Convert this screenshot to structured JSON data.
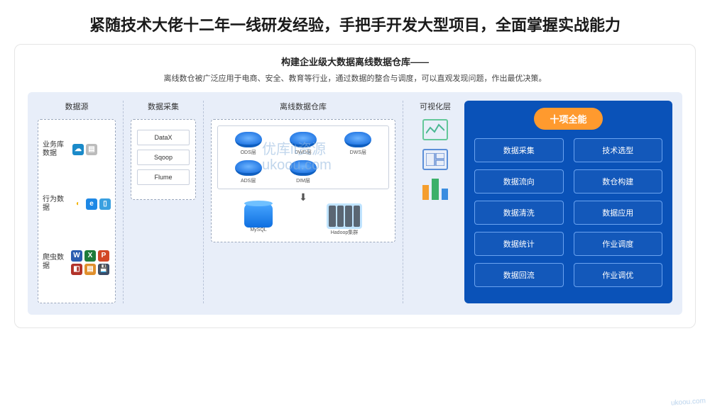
{
  "page_title": "紧随技术大佬十二年一线研发经验，手把手开发大型项目，全面掌握实战能力",
  "card": {
    "title": "构建企业级大数据离线数据仓库——",
    "subtitle": "离线数仓被广泛应用于电商、安全、教育等行业，通过数据的整合与调度，可以直观发现问题，作出最优决策。"
  },
  "columns": {
    "source": {
      "header": "数据源",
      "rows": [
        {
          "label": "业务库数据",
          "icons": [
            {
              "bg": "#1a8ac9",
              "glyph": "☁"
            },
            {
              "bg": "#bcbcbc",
              "glyph": "▤"
            }
          ]
        },
        {
          "label": "行为数据",
          "icons": [
            {
              "bg": "#ffffff",
              "glyph": "◐",
              "fg": "#f4b400"
            },
            {
              "bg": "#1e88e5",
              "glyph": "e"
            },
            {
              "bg": "#3aa0e0",
              "glyph": "▯"
            }
          ]
        },
        {
          "label": "爬虫数据",
          "icons": [
            {
              "bg": "#2a5db0",
              "glyph": "W"
            },
            {
              "bg": "#1f7b3a",
              "glyph": "X"
            },
            {
              "bg": "#d24726",
              "glyph": "P"
            },
            {
              "bg": "#b2332a",
              "glyph": "◧"
            },
            {
              "bg": "#e08f2c",
              "glyph": "▤"
            },
            {
              "bg": "#3b4b66",
              "glyph": "💾",
              "fg": "#fff"
            }
          ]
        }
      ]
    },
    "collect": {
      "header": "数据采集",
      "tools": [
        "DataX",
        "Sqoop",
        "Flume"
      ]
    },
    "warehouse": {
      "header": "离线数据仓库",
      "layers": [
        "ODS层",
        "DWD层",
        "DWS层",
        "ADS层",
        "DIM层"
      ],
      "bottom": [
        {
          "label": "MySQL",
          "kind": "db"
        },
        {
          "label": "Hadoop集群",
          "kind": "hadoop"
        }
      ]
    },
    "viz": {
      "header": "可视化层",
      "icons": [
        {
          "kind": "line",
          "color": "#4bb893"
        },
        {
          "kind": "grid",
          "color": "#6a92d4"
        },
        {
          "kind": "bars",
          "colors": [
            "#f59e2e",
            "#3bb06a",
            "#3a8de0"
          ]
        }
      ]
    }
  },
  "skills": {
    "badge": "十项全能",
    "items": [
      "数据采集",
      "技术选型",
      "数据流向",
      "数仓构建",
      "数据清洗",
      "数据应用",
      "数据统计",
      "作业调度",
      "数据回流",
      "作业调优"
    ],
    "bg": "#0a52b8",
    "badge_bg": "#ff9a2e",
    "pill_border": "#6aa3f0"
  },
  "watermark": {
    "line1": "优库it资源",
    "line2": "ukoou.com"
  },
  "watermark_br": "ukoou.com",
  "colors": {
    "page_bg": "#ffffff",
    "diagram_bg": "#e8eef9",
    "dash_border": "#9aa7bd",
    "disk_gradient": [
      "#6db4ff",
      "#2a7de6",
      "#0f5fc0"
    ]
  }
}
